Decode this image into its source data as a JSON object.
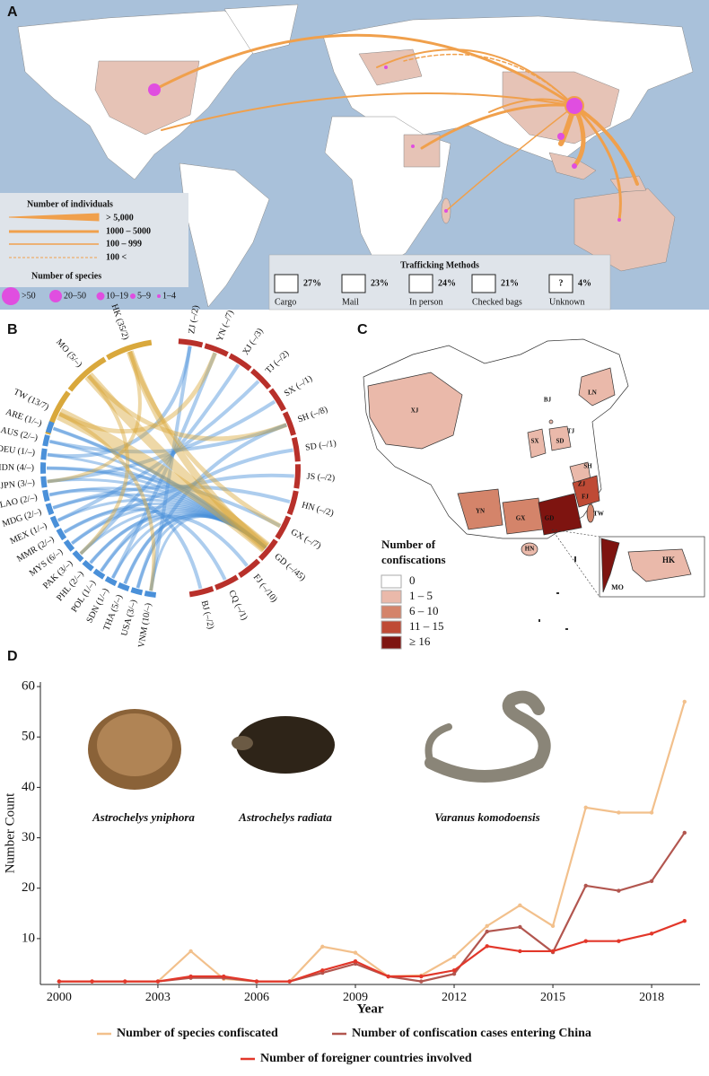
{
  "panel_a": {
    "label": "A",
    "individuals_legend": {
      "title": "Number of individuals",
      "items": [
        "> 5,000",
        "1000 – 5000",
        "100 – 999",
        "100 <"
      ]
    },
    "species_legend": {
      "title": "Number of species",
      "items": [
        ">50",
        "20–50",
        "10–19",
        "5–9",
        "1–4"
      ]
    },
    "methods": {
      "title": "Trafficking Methods",
      "unknown_icon": "?",
      "items": [
        {
          "share": "27%",
          "label": "Cargo"
        },
        {
          "share": "23%",
          "label": "Mail"
        },
        {
          "share": "24%",
          "label": "In person"
        },
        {
          "share": "21%",
          "label": "Checked bags"
        },
        {
          "share": "4%",
          "label": "Unknown"
        }
      ]
    }
  },
  "panel_b": {
    "label": "B",
    "groups": [
      {
        "color": "#d9a83c",
        "labels": [
          "TW (13/7)",
          "MO (5/–)",
          "HK (35/2)"
        ]
      },
      {
        "color": "#b8302a",
        "labels": [
          "ZJ (–/2)",
          "YN (–/7)",
          "XJ (–/3)",
          "TJ (–/2)",
          "SX (–/1)",
          "SH (–/8)",
          "SD (–/1)",
          "JS (–/2)",
          "HN (–/2)",
          "GX (–/7)",
          "GD (–/45)",
          "FJ (–/10)",
          "CQ (–/1)",
          "BJ (–/2)"
        ]
      },
      {
        "color": "#4a90d9",
        "labels": [
          "VNM (10/–)",
          "USA (3/–)",
          "THA (5/–)",
          "SDN (1/–)",
          "POL (1/–)",
          "PHL (2/–)",
          "PAK (3/–)",
          "MYS (6/–)",
          "MMR (2/–)",
          "MEX (1/–)",
          "MDG (2/–)",
          "LAO (2/–)",
          "JPN (3/–)",
          "IDN (4/–)",
          "DEU (1/–)",
          "AUS (2/–)",
          "ARE (1/–)"
        ]
      }
    ]
  },
  "panel_c": {
    "label": "C",
    "provinces": [
      "XJ",
      "BJ",
      "LN",
      "TJ",
      "SX",
      "SD",
      "SH",
      "ZJ",
      "FJ",
      "TW",
      "GD",
      "GX",
      "YN",
      "HN"
    ],
    "inset": [
      "HK",
      "MO"
    ],
    "legend_title": [
      "Number of",
      "confiscations"
    ],
    "legend_items": [
      "0",
      "1 – 5",
      "6 – 10",
      "11 – 15",
      "≥ 16"
    ],
    "legend_colors": [
      "#ffffff",
      "#eab9aa",
      "#d4846a",
      "#bf4a35",
      "#7e1410"
    ]
  },
  "chart_data": {
    "type": "line",
    "label": "D",
    "x_label": "Year",
    "y_label": "Number Count",
    "annotations": [
      "Astrochelys yniphora",
      "Astrochelys radiata",
      "Varanus komodoensis"
    ],
    "x": [
      2000,
      2001,
      2002,
      2003,
      2004,
      2005,
      2006,
      2007,
      2008,
      2009,
      2010,
      2011,
      2012,
      2013,
      2014,
      2015,
      2016,
      2017,
      2018,
      2019
    ],
    "xlim": [
      1999.43,
      2019.47
    ],
    "xticks": [
      2000,
      2003,
      2006,
      2009,
      2012,
      2015,
      2018
    ],
    "ylim": [
      0.9,
      60.9
    ],
    "yticks": [
      10,
      20,
      30,
      40,
      50,
      60
    ],
    "series": [
      {
        "name": "Number of species confiscated",
        "color": "#f2c08c",
        "values": [
          1.5,
          1.5,
          1.5,
          1.5,
          7.5,
          2,
          1.5,
          1.5,
          8.4,
          7.2,
          2.5,
          2.7,
          6.4,
          12.5,
          16.6,
          12.5,
          36,
          35,
          35,
          57
        ]
      },
      {
        "name": "Number of confiscation cases entering China",
        "color": "#b2564f",
        "values": [
          1.5,
          1.5,
          1.5,
          1.5,
          2.2,
          2.2,
          1.5,
          1.5,
          3.2,
          5,
          2.5,
          1.5,
          3,
          11.4,
          12.3,
          7.3,
          20.5,
          19.5,
          21.4,
          31
        ]
      },
      {
        "name": "Number of foreigner countries involved",
        "color": "#e2372a",
        "values": [
          1.5,
          1.5,
          1.5,
          1.5,
          2.5,
          2.5,
          1.5,
          1.5,
          3.7,
          5.5,
          2.5,
          2.5,
          3.7,
          8.5,
          7.5,
          7.5,
          9.5,
          9.5,
          11,
          13.5
        ]
      }
    ]
  }
}
